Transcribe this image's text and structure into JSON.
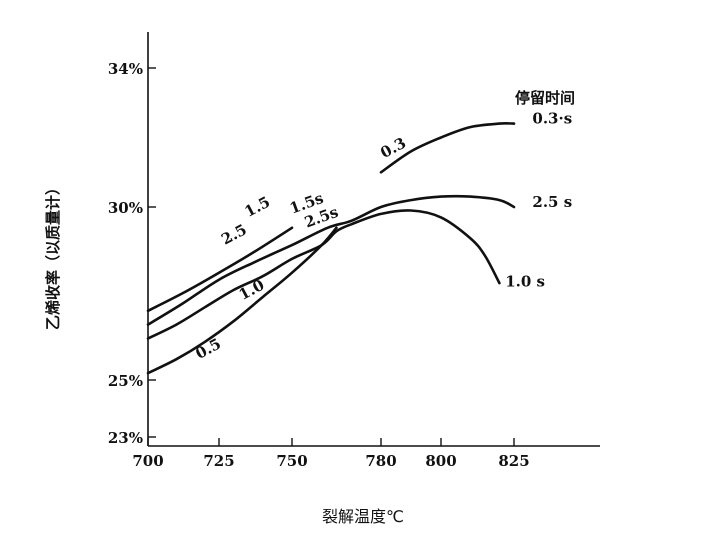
{
  "chart_data": {
    "type": "line",
    "title": "",
    "xlabel": "裂解温度℃",
    "ylabel": "乙烯收率（以质量计）",
    "legend_title": "停留时间",
    "x_ticks": [
      700,
      725,
      750,
      780,
      800,
      825
    ],
    "x_tick_labels": [
      "700",
      "725",
      "750",
      "780",
      "800",
      "825"
    ],
    "y_ticks": [
      23,
      25,
      30,
      34
    ],
    "y_tick_labels": [
      "23%",
      "25%",
      "30%",
      "34%"
    ],
    "xlim": [
      700,
      825
    ],
    "ylim": [
      23,
      34.5
    ],
    "grid": false,
    "series": [
      {
        "name": "0.5",
        "label": "0.5",
        "x": [
          700,
          710,
          720,
          730,
          740,
          750,
          760,
          765
        ],
        "y": [
          25.2,
          25.6,
          26.1,
          26.7,
          27.4,
          28.1,
          28.9,
          29.4
        ]
      },
      {
        "name": "1.0",
        "label": "1.0",
        "x": [
          700,
          710,
          720,
          730,
          740,
          750,
          760,
          765,
          770,
          780,
          790,
          800,
          810,
          815,
          820
        ],
        "y": [
          26.2,
          26.6,
          27.1,
          27.6,
          28.0,
          28.5,
          28.9,
          29.3,
          29.5,
          29.8,
          29.9,
          29.7,
          29.1,
          28.6,
          27.8
        ]
      },
      {
        "name": "2.5",
        "label": "2.5",
        "x": [
          700,
          712,
          725,
          737,
          750,
          762,
          770,
          780,
          790,
          800,
          810,
          820,
          825
        ],
        "y": [
          26.6,
          27.2,
          27.9,
          28.4,
          28.9,
          29.4,
          29.6,
          30.0,
          30.2,
          30.3,
          30.3,
          30.2,
          30.0
        ]
      },
      {
        "name": "1.5",
        "label": "1.5",
        "x": [
          700,
          712,
          725,
          737,
          750
        ],
        "y": [
          27.0,
          27.5,
          28.1,
          28.7,
          29.4
        ]
      },
      {
        "name": "0.3",
        "label": "0.3",
        "x": [
          780,
          790,
          800,
          810,
          820,
          825
        ],
        "y": [
          31.0,
          31.6,
          32.0,
          32.3,
          32.4,
          32.4
        ]
      }
    ],
    "annotations": [
      {
        "text": "2.5",
        "x": 727,
        "y": 28.9,
        "rotate": -28
      },
      {
        "text": "1.5",
        "x": 735,
        "y": 29.7,
        "rotate": -28
      },
      {
        "text": "1.5s",
        "x": 750,
        "y": 29.8,
        "rotate": -20
      },
      {
        "text": "2.5s",
        "x": 755,
        "y": 29.4,
        "rotate": -20
      },
      {
        "text": "1.0",
        "x": 733,
        "y": 27.3,
        "rotate": -28
      },
      {
        "text": "0.5",
        "x": 718,
        "y": 25.6,
        "rotate": -28
      },
      {
        "text": "0.3",
        "x": 781,
        "y": 31.4,
        "rotate": -28
      },
      {
        "text": "0.3·s",
        "x": 831,
        "y": 32.4,
        "rotate": 0
      },
      {
        "text": "2.5 s",
        "x": 831,
        "y": 30.0,
        "rotate": 0
      },
      {
        "text": "1.0 s",
        "x": 822,
        "y": 27.7,
        "rotate": 0
      }
    ]
  }
}
